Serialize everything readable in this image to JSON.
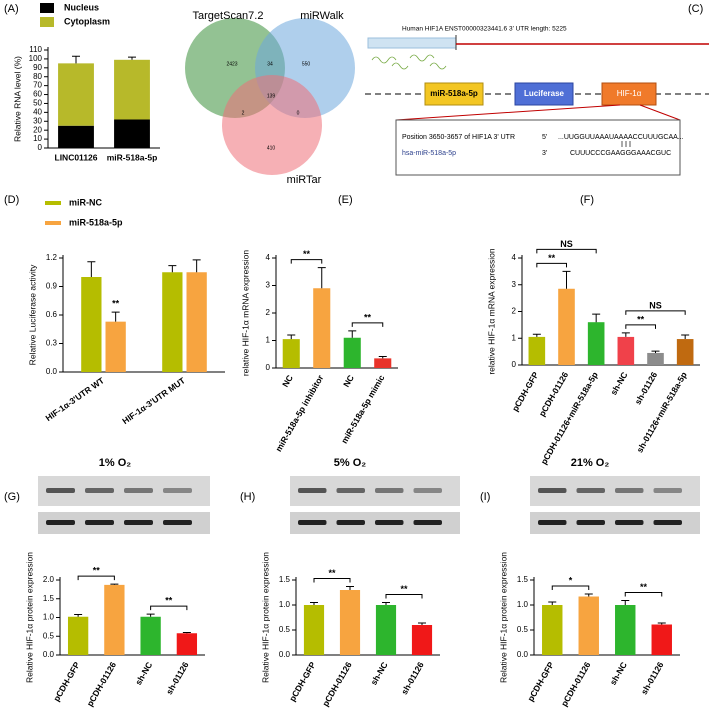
{
  "chart_data": [
    {
      "type": "bar",
      "panel": "(A)",
      "stacked": true,
      "ylabel": "Relative RNA level (%)",
      "categories": [
        "LINC01126",
        "miR-518a-5p"
      ],
      "series": [
        {
          "name": "Nucleus",
          "color": "#000000",
          "values": [
            25,
            32
          ]
        },
        {
          "name": "Cytoplasm",
          "color": "#b7b92a",
          "values": [
            70,
            67
          ],
          "errors": [
            8,
            3
          ]
        }
      ],
      "ylim": [
        0,
        110
      ],
      "yticks": [
        0,
        10,
        20,
        30,
        40,
        50,
        60,
        70,
        80,
        90,
        100,
        110
      ]
    },
    {
      "type": "venn",
      "panel": "(B)",
      "sets": [
        "TargetScan7.2",
        "miRWalk",
        "miRTar"
      ],
      "colors": [
        "#3a8f3a",
        "#6ea8dc",
        "#ee6f78"
      ],
      "regions": [
        2423,
        34,
        550,
        139,
        2,
        0,
        410
      ]
    },
    {
      "type": "bar",
      "panel": "(D)",
      "ylabel": "Relative Luciferase activity",
      "categories": [
        "HIF-1α-3'UTR WT",
        "HIF-1α-3'UTR MUT"
      ],
      "series": [
        {
          "name": "miR-NC",
          "color": "#b5bd00",
          "values": [
            1.0,
            1.05
          ],
          "errors": [
            0.16,
            0.07
          ]
        },
        {
          "name": "miR-518a-5p",
          "color": "#f7a440",
          "values": [
            0.53,
            1.05
          ],
          "errors": [
            0.1,
            0.13
          ]
        }
      ],
      "annotations": [
        "**"
      ],
      "ylim": [
        0,
        1.2
      ],
      "yticks": [
        {
          "value": 0,
          "label": "0.0"
        },
        0.3,
        0.6,
        0.9,
        1.2
      ]
    },
    {
      "type": "bar",
      "panel": "(E)",
      "ylabel": "relative HIF-1α mRNA expression",
      "categories": [
        "NC",
        "miR-518a-5p inhibitor",
        "NC",
        "miR-518a-5p mimic"
      ],
      "values": [
        1.05,
        2.9,
        1.1,
        0.35
      ],
      "errors": [
        0.15,
        0.75,
        0.25,
        0.07
      ],
      "colors": [
        "#b5bd00",
        "#f7a440",
        "#2db52d",
        "#e8332a"
      ],
      "annotations": [
        "**",
        "**"
      ],
      "ylim": [
        0,
        4
      ],
      "yticks": [
        0,
        1,
        2,
        3,
        4
      ]
    },
    {
      "type": "bar",
      "panel": "(F)",
      "ylabel": "relative HIF-1α mRNA expression",
      "categories": [
        "pCDH-GFP",
        "pCDH-01126",
        "pCDH-01126+miR-518a-5p",
        "sh-NC",
        "sh-01126",
        "sh-01126+miR-518a-5p"
      ],
      "values": [
        1.05,
        2.85,
        1.6,
        1.05,
        0.45,
        0.97
      ],
      "errors": [
        0.1,
        0.65,
        0.3,
        0.15,
        0.07,
        0.15
      ],
      "colors": [
        "#b5bd00",
        "#f7a440",
        "#2db52d",
        "#f0414a",
        "#8c8c8c",
        "#c06a10"
      ],
      "annotations": [
        "**",
        "NS",
        "**",
        "NS"
      ],
      "ylim": [
        0,
        4
      ],
      "yticks": [
        0,
        1,
        2,
        3,
        4
      ]
    },
    {
      "type": "bar",
      "panel": "(G)",
      "title": "1% O₂",
      "ylabel": "Relative HIF-1α protein expression",
      "categories": [
        "pCDH-GFP",
        "pCDH-01126",
        "sh-NC",
        "sh-01126"
      ],
      "values": [
        1.02,
        1.87,
        1.02,
        0.58
      ],
      "errors": [
        0.06,
        0.02,
        0.07,
        0.02
      ],
      "colors": [
        "#b5bd00",
        "#f7a440",
        "#2db52d",
        "#f01818"
      ],
      "annotations": [
        "**",
        "**"
      ],
      "ylim": [
        0,
        2
      ],
      "yticks": [
        {
          "value": 0,
          "label": "0.0"
        },
        0.5,
        {
          "value": 1,
          "label": "1.0"
        },
        1.5,
        {
          "value": 2,
          "label": "2.0"
        }
      ]
    },
    {
      "type": "bar",
      "panel": "(H)",
      "title": "5% O₂",
      "ylabel": "Relative HIF-1α protein expression",
      "categories": [
        "pCDH-GFP",
        "pCDH-01126",
        "sh-NC",
        "sh-01126"
      ],
      "values": [
        1.0,
        1.3,
        1.0,
        0.6
      ],
      "errors": [
        0.05,
        0.07,
        0.05,
        0.04
      ],
      "colors": [
        "#b5bd00",
        "#f7a440",
        "#2db52d",
        "#f01818"
      ],
      "annotations": [
        "**",
        "**"
      ],
      "ylim": [
        0,
        1.5
      ],
      "yticks": [
        {
          "value": 0,
          "label": "0.0"
        },
        0.5,
        {
          "value": 1,
          "label": "1.0"
        },
        1.5
      ]
    },
    {
      "type": "bar",
      "panel": "(I)",
      "title": "21% O₂",
      "ylabel": "Relative HIF-1α protein expression",
      "categories": [
        "pCDH-GFP",
        "pCDH-01126",
        "sh-NC",
        "sh-01126"
      ],
      "values": [
        1.0,
        1.17,
        1.0,
        0.61
      ],
      "errors": [
        0.06,
        0.05,
        0.09,
        0.03
      ],
      "colors": [
        "#b5bd00",
        "#f7a440",
        "#2db52d",
        "#f01818"
      ],
      "annotations": [
        "*",
        "**"
      ],
      "ylim": [
        0,
        1.5
      ],
      "yticks": [
        {
          "value": 0,
          "label": "0.0"
        },
        0.5,
        {
          "value": 1,
          "label": "1.0"
        },
        1.5
      ]
    }
  ],
  "diagram": {
    "panel": "(C)",
    "header": "Human HIF1A  ENST00000323441.6  3' UTR length: 5225",
    "boxes": [
      "miR-518a-5p",
      "Luciferase",
      "HIF-1α"
    ],
    "position": "Position 3650-3657 of HIF1A 3' UTR",
    "end5": "5'",
    "target": "...UUGGUUAAAUAAAACCUUUGCAA...",
    "mirna": "hsa-miR-518a-5p",
    "end3": "3'",
    "mirna_seq": "CUUUCCCGAAGGGAAACGUC"
  }
}
